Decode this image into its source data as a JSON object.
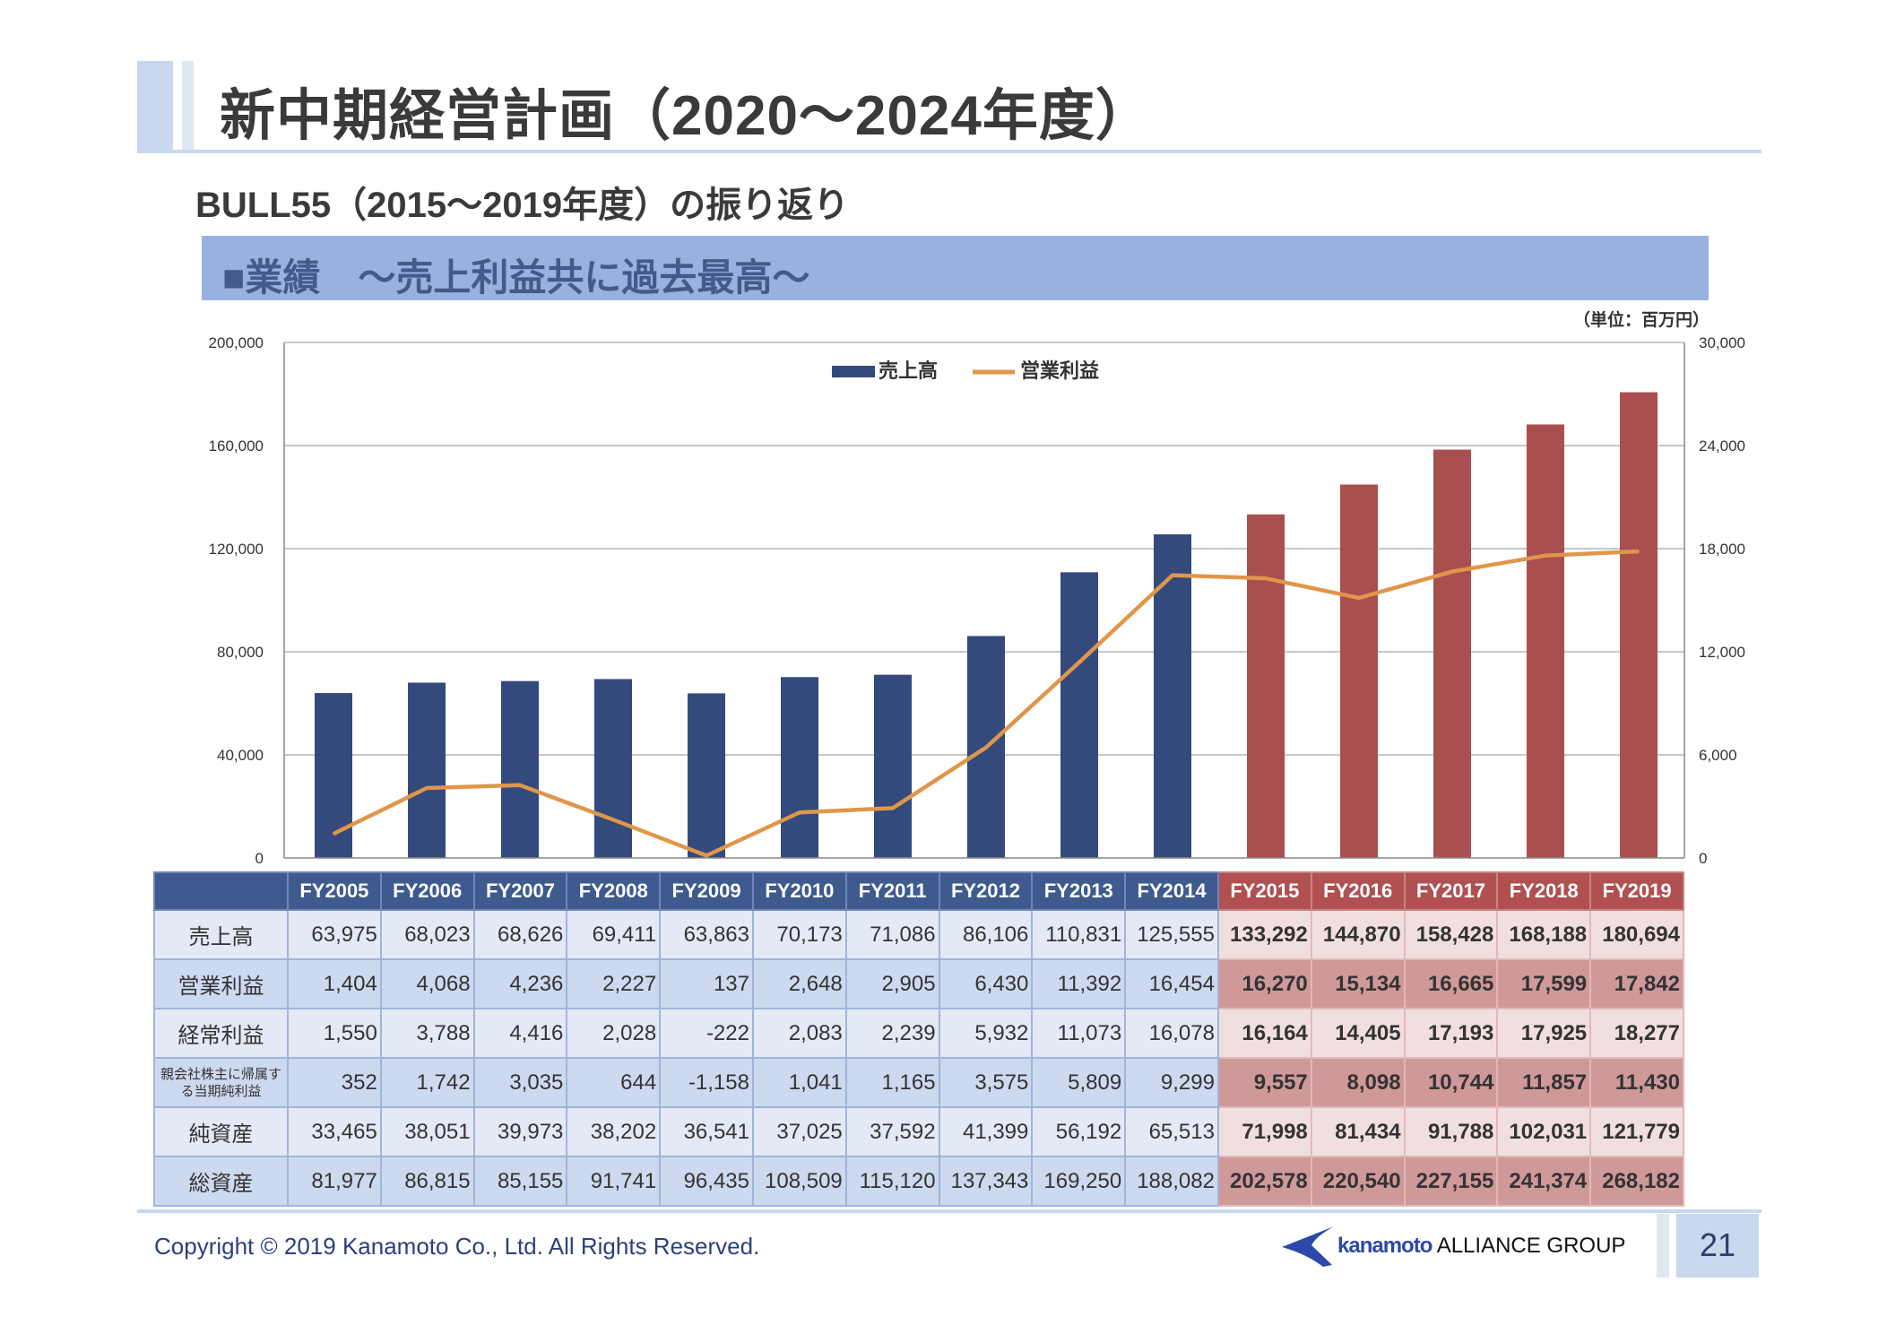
{
  "header": {
    "title": "新中期経営計画（2020～2024年度）",
    "subtitle": "BULL55（2015～2019年度）の振り返り",
    "section": "■業績　～売上利益共に過去最高～",
    "unit": "（単位：百万円）"
  },
  "colors": {
    "bar_past": "#344a7c",
    "bar_plan": "#a94f4f",
    "line": "#e0964a"
  },
  "chart_data": {
    "type": "bar+line",
    "categories": [
      "FY2005",
      "FY2006",
      "FY2007",
      "FY2008",
      "FY2009",
      "FY2010",
      "FY2011",
      "FY2012",
      "FY2013",
      "FY2014",
      "FY2015",
      "FY2016",
      "FY2017",
      "FY2018",
      "FY2019"
    ],
    "series": [
      {
        "name": "売上高",
        "type": "bar",
        "axis": "left",
        "values": [
          63975,
          68023,
          68626,
          69411,
          63863,
          70173,
          71086,
          86106,
          110831,
          125555,
          133292,
          144870,
          158428,
          168188,
          180694
        ]
      },
      {
        "name": "営業利益",
        "type": "line",
        "axis": "right",
        "values": [
          1404,
          4068,
          4236,
          2227,
          137,
          2648,
          2905,
          6430,
          11392,
          16454,
          16270,
          15134,
          16665,
          17599,
          17842
        ]
      }
    ],
    "highlight_from": "FY2015",
    "ylim_left": [
      0,
      200000
    ],
    "ylim_right": [
      0,
      30000
    ],
    "left_ticks": [
      "0",
      "40,000",
      "80,000",
      "120,000",
      "160,000",
      "200,000"
    ],
    "right_ticks": [
      "0",
      "6,000",
      "12,000",
      "18,000",
      "24,000",
      "30,000"
    ],
    "legend": [
      "売上高",
      "営業利益"
    ],
    "legend_position": "top-center",
    "grid": true
  },
  "table": {
    "columns": [
      "FY2005",
      "FY2006",
      "FY2007",
      "FY2008",
      "FY2009",
      "FY2010",
      "FY2011",
      "FY2012",
      "FY2013",
      "FY2014",
      "FY2015",
      "FY2016",
      "FY2017",
      "FY2018",
      "FY2019"
    ],
    "rows": [
      {
        "label": "売上高",
        "values": [
          "63,975",
          "68,023",
          "68,626",
          "69,411",
          "63,863",
          "70,173",
          "71,086",
          "86,106",
          "110,831",
          "125,555",
          "133,292",
          "144,870",
          "158,428",
          "168,188",
          "180,694"
        ]
      },
      {
        "label": "営業利益",
        "values": [
          "1,404",
          "4,068",
          "4,236",
          "2,227",
          "137",
          "2,648",
          "2,905",
          "6,430",
          "11,392",
          "16,454",
          "16,270",
          "15,134",
          "16,665",
          "17,599",
          "17,842"
        ]
      },
      {
        "label": "経常利益",
        "values": [
          "1,550",
          "3,788",
          "4,416",
          "2,028",
          "-222",
          "2,083",
          "2,239",
          "5,932",
          "11,073",
          "16,078",
          "16,164",
          "14,405",
          "17,193",
          "17,925",
          "18,277"
        ]
      },
      {
        "label": "親会社株主に帰属する当期純利益",
        "values": [
          "352",
          "1,742",
          "3,035",
          "644",
          "-1,158",
          "1,041",
          "1,165",
          "3,575",
          "5,809",
          "9,299",
          "9,557",
          "8,098",
          "10,744",
          "11,857",
          "11,430"
        ]
      },
      {
        "label": "純資産",
        "values": [
          "33,465",
          "38,051",
          "39,973",
          "38,202",
          "36,541",
          "37,025",
          "37,592",
          "41,399",
          "56,192",
          "65,513",
          "71,998",
          "81,434",
          "91,788",
          "102,031",
          "121,779"
        ]
      },
      {
        "label": "総資産",
        "values": [
          "81,977",
          "86,815",
          "85,155",
          "91,741",
          "96,435",
          "108,509",
          "115,120",
          "137,343",
          "169,250",
          "188,082",
          "202,578",
          "220,540",
          "227,155",
          "241,374",
          "268,182"
        ]
      }
    ]
  },
  "footer": {
    "copyright": "Copyright © 2019 Kanamoto Co., Ltd. All Rights Reserved.",
    "logo_brand": "kanamoto",
    "logo_group": "ALLIANCE GROUP",
    "page": "21"
  }
}
